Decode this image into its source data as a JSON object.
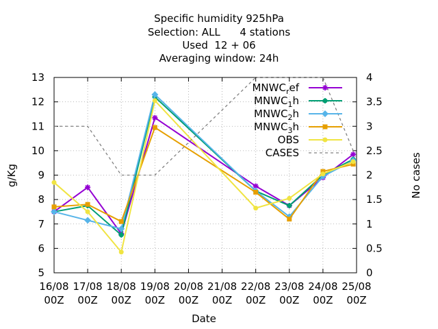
{
  "chart_data": {
    "type": "line",
    "title_lines": [
      "Specific humidity 925hPa",
      "Selection: ALL      4 stations",
      "Used  12 + 06",
      "Averaging window: 24h"
    ],
    "xlabel": "Date",
    "ylabel": "g/Kg",
    "y2label": "No cases",
    "x_tick_labels": [
      [
        "16/08",
        "00Z"
      ],
      [
        "17/08",
        "00Z"
      ],
      [
        "18/08",
        "00Z"
      ],
      [
        "19/08",
        "00Z"
      ],
      [
        "20/08",
        "00Z"
      ],
      [
        "21/08",
        "00Z"
      ],
      [
        "22/08",
        "00Z"
      ],
      [
        "23/08",
        "00Z"
      ],
      [
        "24/08",
        "00Z"
      ],
      [
        "25/08",
        "00Z"
      ]
    ],
    "ylim": [
      5,
      13
    ],
    "y_ticks": [
      5,
      6,
      7,
      8,
      9,
      10,
      11,
      12,
      13
    ],
    "y2lim": [
      0,
      4
    ],
    "y2_ticks": [
      "0",
      "0.5",
      "1",
      "1.5",
      "2",
      "2.5",
      "3",
      "3.5",
      "4"
    ],
    "grid": true,
    "legend_position": "top-right",
    "series": [
      {
        "legend": [
          "MNWC",
          "r",
          "ef"
        ],
        "color": "#9400d3",
        "marker": "plus",
        "points": [
          [
            0,
            7.5
          ],
          [
            1,
            8.5
          ],
          [
            2,
            6.6
          ],
          [
            3,
            11.35
          ],
          [
            6,
            8.55
          ],
          [
            7,
            7.75
          ],
          [
            8,
            8.9
          ],
          [
            8.9,
            9.85
          ]
        ]
      },
      {
        "legend": [
          "MNWC",
          "1",
          "h"
        ],
        "color": "#009e73",
        "marker": "star",
        "points": [
          [
            0,
            7.5
          ],
          [
            1,
            7.75
          ],
          [
            2,
            6.55
          ],
          [
            3,
            12.2
          ],
          [
            6,
            8.35
          ],
          [
            7,
            7.75
          ],
          [
            8,
            9.0
          ],
          [
            8.9,
            9.65
          ]
        ]
      },
      {
        "legend": [
          "MNWC",
          "2",
          "h"
        ],
        "color": "#56b4e9",
        "marker": "x",
        "points": [
          [
            0,
            7.5
          ],
          [
            1,
            7.15
          ],
          [
            2,
            6.8
          ],
          [
            3,
            12.3
          ],
          [
            6,
            8.35
          ],
          [
            7,
            7.3
          ],
          [
            8,
            8.95
          ],
          [
            8.9,
            9.6
          ]
        ]
      },
      {
        "legend": [
          "MNWC",
          "3",
          "h"
        ],
        "color": "#e69f00",
        "marker": "square",
        "points": [
          [
            0,
            7.7
          ],
          [
            1,
            7.8
          ],
          [
            2,
            7.1
          ],
          [
            3,
            10.95
          ],
          [
            6,
            8.3
          ],
          [
            7,
            7.2
          ],
          [
            8,
            9.15
          ],
          [
            8.9,
            9.45
          ]
        ]
      },
      {
        "legend": [
          "OBS",
          "",
          ""
        ],
        "color": "#f0e442",
        "marker": "circle",
        "points": [
          [
            0,
            8.7
          ],
          [
            1,
            7.5
          ],
          [
            2,
            5.85
          ],
          [
            3,
            12.05
          ],
          [
            6,
            7.65
          ],
          [
            7,
            8.05
          ],
          [
            8,
            9.05
          ],
          [
            8.9,
            9.55
          ]
        ]
      },
      {
        "legend": [
          "CASES",
          "",
          ""
        ],
        "color": "#808080",
        "marker": "none",
        "dashed": true,
        "axis": "y2",
        "points": [
          [
            0,
            3
          ],
          [
            1,
            3
          ],
          [
            2,
            2
          ],
          [
            3,
            2
          ],
          [
            6,
            4
          ],
          [
            7,
            4
          ],
          [
            8,
            4
          ],
          [
            8.9,
            2.5
          ]
        ]
      }
    ]
  }
}
